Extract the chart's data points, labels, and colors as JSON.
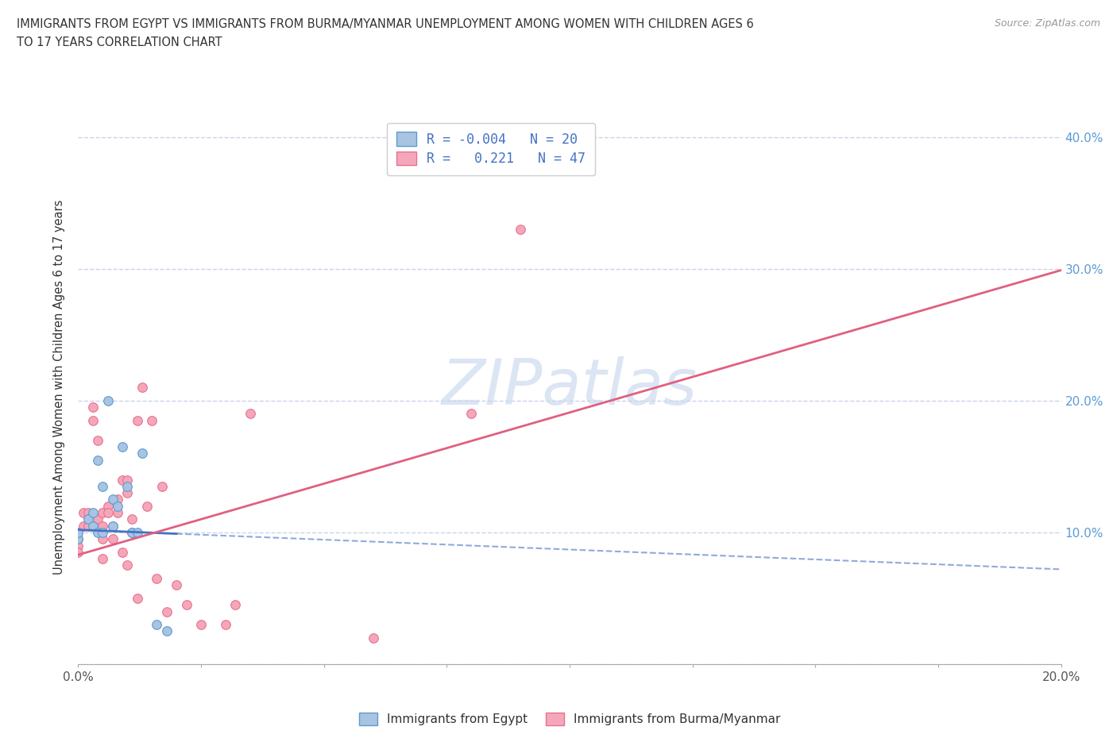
{
  "title_line1": "IMMIGRANTS FROM EGYPT VS IMMIGRANTS FROM BURMA/MYANMAR UNEMPLOYMENT AMONG WOMEN WITH CHILDREN AGES 6",
  "title_line2": "TO 17 YEARS CORRELATION CHART",
  "source": "Source: ZipAtlas.com",
  "ylabel": "Unemployment Among Women with Children Ages 6 to 17 years",
  "xlim": [
    0.0,
    0.2
  ],
  "ylim": [
    0.0,
    0.42
  ],
  "x_ticks": [
    0.0,
    0.025,
    0.05,
    0.075,
    0.1,
    0.125,
    0.15,
    0.175,
    0.2
  ],
  "x_label_ticks": [
    0.0,
    0.2
  ],
  "x_tick_labels": [
    "0.0%",
    "20.0%"
  ],
  "y_ticks": [
    0.0,
    0.1,
    0.2,
    0.3,
    0.4
  ],
  "y_tick_labels_right": [
    "",
    "10.0%",
    "20.0%",
    "30.0%",
    "40.0%"
  ],
  "egypt_color": "#a8c4e0",
  "burma_color": "#f4a7b9",
  "egypt_edge": "#5b9bd5",
  "burma_edge": "#e87090",
  "trend_egypt_color": "#4472c4",
  "trend_burma_color": "#e06080",
  "grid_color": "#c8d4e8",
  "watermark_color": "#ccdaee",
  "egypt_scatter_x": [
    0.0,
    0.0,
    0.002,
    0.003,
    0.003,
    0.004,
    0.004,
    0.005,
    0.005,
    0.006,
    0.007,
    0.007,
    0.008,
    0.009,
    0.01,
    0.011,
    0.012,
    0.013,
    0.016,
    0.018
  ],
  "egypt_scatter_y": [
    0.095,
    0.1,
    0.11,
    0.115,
    0.105,
    0.1,
    0.155,
    0.135,
    0.1,
    0.2,
    0.125,
    0.105,
    0.12,
    0.165,
    0.135,
    0.1,
    0.1,
    0.16,
    0.03,
    0.025
  ],
  "burma_scatter_x": [
    0.0,
    0.0,
    0.0,
    0.0,
    0.0,
    0.001,
    0.001,
    0.002,
    0.002,
    0.003,
    0.003,
    0.004,
    0.004,
    0.005,
    0.005,
    0.005,
    0.005,
    0.006,
    0.006,
    0.007,
    0.007,
    0.008,
    0.008,
    0.009,
    0.009,
    0.01,
    0.01,
    0.01,
    0.011,
    0.011,
    0.012,
    0.012,
    0.013,
    0.014,
    0.015,
    0.016,
    0.017,
    0.018,
    0.02,
    0.022,
    0.025,
    0.03,
    0.032,
    0.035,
    0.06,
    0.08,
    0.09
  ],
  "burma_scatter_y": [
    0.1,
    0.095,
    0.095,
    0.09,
    0.085,
    0.115,
    0.105,
    0.115,
    0.105,
    0.195,
    0.185,
    0.17,
    0.11,
    0.115,
    0.105,
    0.095,
    0.08,
    0.12,
    0.115,
    0.105,
    0.095,
    0.125,
    0.115,
    0.085,
    0.14,
    0.13,
    0.075,
    0.14,
    0.1,
    0.11,
    0.185,
    0.05,
    0.21,
    0.12,
    0.185,
    0.065,
    0.135,
    0.04,
    0.06,
    0.045,
    0.03,
    0.03,
    0.045,
    0.19,
    0.02,
    0.19,
    0.33
  ],
  "trend_egypt_intercept": 0.102,
  "trend_egypt_slope": -0.15,
  "trend_burma_intercept": 0.083,
  "trend_burma_slope": 1.08
}
